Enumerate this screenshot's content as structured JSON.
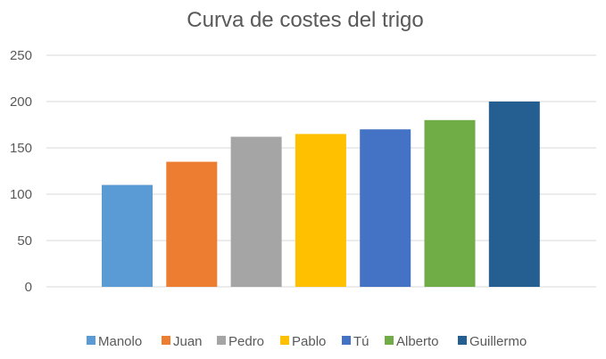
{
  "chart_data": {
    "type": "bar",
    "title": "Curva de costes del trigo",
    "xlabel": "",
    "ylabel": "",
    "categories": [
      "Manolo",
      "Juan",
      "Pedro",
      "Pablo",
      "Tú",
      "Alberto",
      "Guillermo"
    ],
    "values": [
      110,
      135,
      162,
      165,
      170,
      180,
      200
    ],
    "colors": [
      "#5B9BD5",
      "#ED7D31",
      "#A5A5A5",
      "#FFC000",
      "#4472C4",
      "#70AD47",
      "#255E91"
    ],
    "ylim": [
      0,
      250
    ],
    "yticks": [
      "0",
      "50",
      "100",
      "150",
      "200",
      "250"
    ],
    "grid": true,
    "legend_position": "bottom"
  }
}
